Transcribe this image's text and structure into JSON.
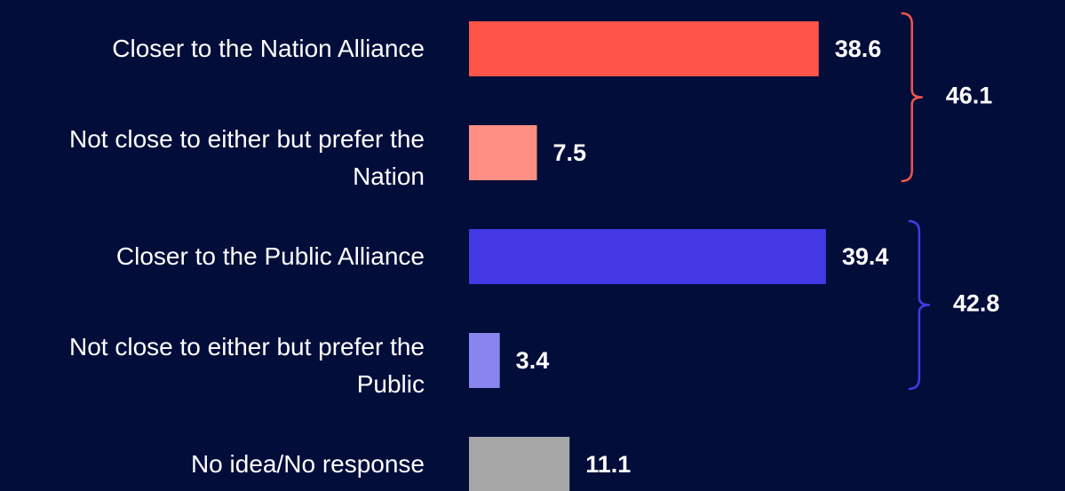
{
  "chart_data": {
    "type": "bar",
    "categories": [
      "Closer to the Nation Alliance",
      "Not close to either but prefer the Nation",
      "Closer to the Public Alliance",
      "Not close to either but prefer the Public",
      "No idea/No response"
    ],
    "values": [
      38.6,
      7.5,
      39.4,
      3.4,
      11.1
    ],
    "colors": [
      "#ff5548",
      "#ff8f85",
      "#4439e4",
      "#8a84ee",
      "#a6a6a6"
    ],
    "groups": [
      {
        "value": 46.1,
        "color": "#f0554a"
      },
      {
        "value": 42.8,
        "color": "#4439e4"
      }
    ]
  }
}
